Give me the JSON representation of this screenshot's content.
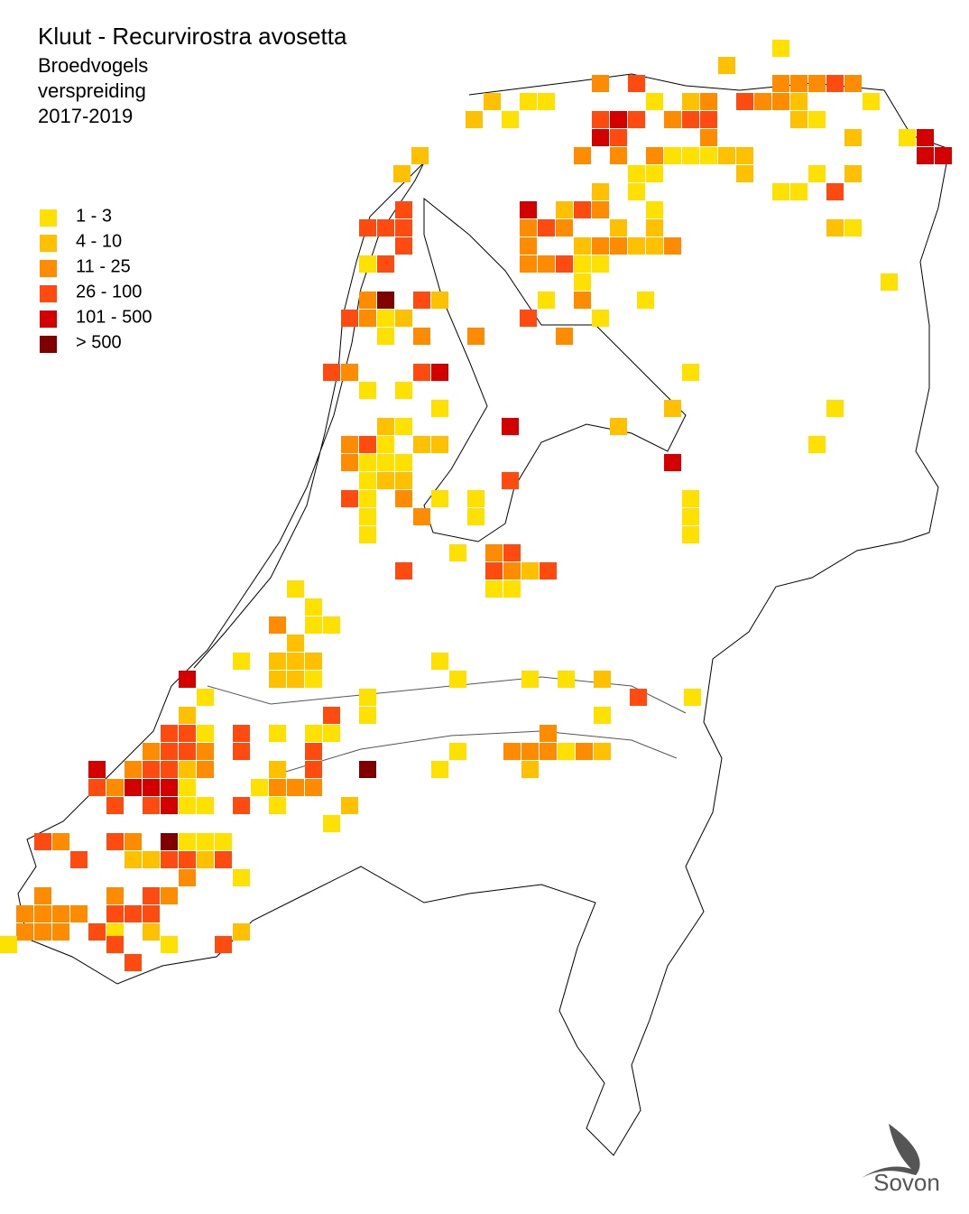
{
  "header": {
    "title": "Kluut - Recurvirostra avosetta",
    "subtitle": [
      "Broedvogels",
      "verspreiding",
      "2017-2019"
    ]
  },
  "legend": {
    "items": [
      {
        "label": "1 - 3",
        "color": "#ffe100"
      },
      {
        "label": "4 - 10",
        "color": "#ffc000"
      },
      {
        "label": "11 - 25",
        "color": "#ff8c00"
      },
      {
        "label": "26 - 100",
        "color": "#ff4a10"
      },
      {
        "label": "101 - 500",
        "color": "#d40000"
      },
      {
        "label": "> 500",
        "color": "#800000"
      }
    ]
  },
  "logo": {
    "text": "Sovon"
  }
}
